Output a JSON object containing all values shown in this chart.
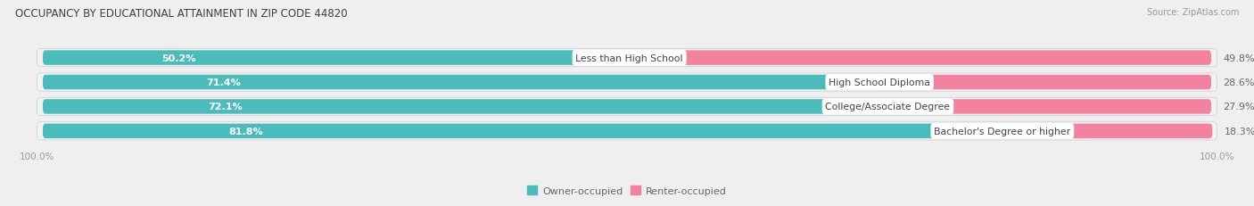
{
  "title": "OCCUPANCY BY EDUCATIONAL ATTAINMENT IN ZIP CODE 44820",
  "source": "Source: ZipAtlas.com",
  "categories": [
    "Less than High School",
    "High School Diploma",
    "College/Associate Degree",
    "Bachelor's Degree or higher"
  ],
  "owner_values": [
    50.2,
    71.4,
    72.1,
    81.8
  ],
  "renter_values": [
    49.8,
    28.6,
    27.9,
    18.3
  ],
  "owner_color": "#4bbcbc",
  "renter_color": "#f282a0",
  "background_color": "#efefef",
  "bar_background": "#e0e0e0",
  "bar_inner_bg": "#f8f8f8",
  "label_color": "#666666",
  "title_color": "#404040",
  "axis_label_color": "#999999",
  "bar_height": 0.62,
  "legend_owner": "Owner-occupied",
  "legend_renter": "Renter-occupied"
}
